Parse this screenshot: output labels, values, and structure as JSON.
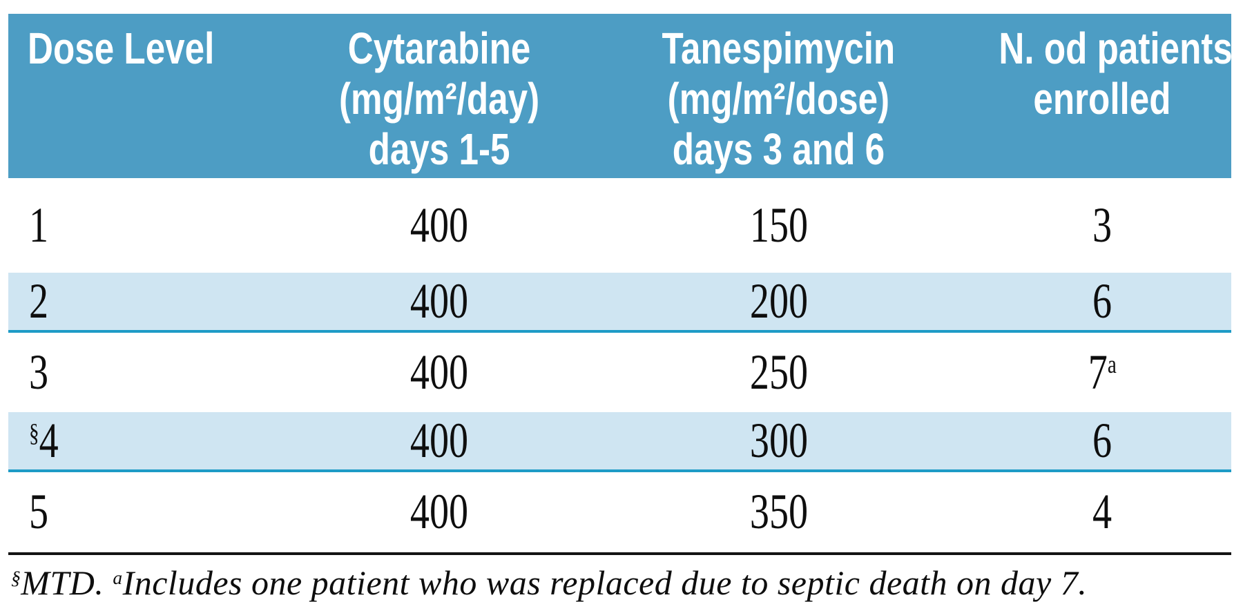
{
  "colors": {
    "header_bg": "#4d9dc4",
    "row_alt_bg": "#cfe5f2",
    "row_alt_border": "#1e9bc6",
    "text": "#0e0e0e",
    "header_text": "#ffffff"
  },
  "table": {
    "header": {
      "col1": "Dose Level",
      "col2": [
        "Cytarabine",
        "(mg/m²/day)",
        "days 1-5"
      ],
      "col3": [
        "Tanespimycin",
        "(mg/m²/dose)",
        "days 3 and 6"
      ],
      "col4": [
        "N. od patients",
        "enrolled"
      ]
    },
    "rows": [
      {
        "level_sup": "",
        "level": "1",
        "cytarabine": "400",
        "tanespimycin": "150",
        "patients": "3",
        "patients_sup": ""
      },
      {
        "level_sup": "",
        "level": "2",
        "cytarabine": "400",
        "tanespimycin": "200",
        "patients": "6",
        "patients_sup": ""
      },
      {
        "level_sup": "",
        "level": "3",
        "cytarabine": "400",
        "tanespimycin": "250",
        "patients": "7",
        "patients_sup": "a"
      },
      {
        "level_sup": "§",
        "level": "4",
        "cytarabine": "400",
        "tanespimycin": "300",
        "patients": "6",
        "patients_sup": ""
      },
      {
        "level_sup": "",
        "level": "5",
        "cytarabine": "400",
        "tanespimycin": "350",
        "patients": "4",
        "patients_sup": ""
      }
    ]
  },
  "footnote": {
    "sup1": "§",
    "part1": "MTD. ",
    "sup2": "a",
    "part2": "Includes one patient who was replaced due to septic death on day 7."
  }
}
